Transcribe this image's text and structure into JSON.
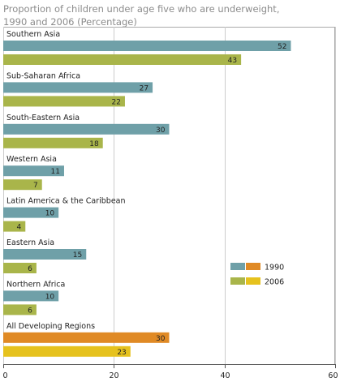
{
  "title_lines": [
    "Proportion of children under age five who are underweight,",
    "1990 and 2006 (Percentage)"
  ],
  "chart_data": {
    "type": "bar",
    "orientation": "horizontal",
    "categories": [
      "Southern Asia",
      "Sub-Saharan Africa",
      "South-Eastern Asia",
      "Western Asia",
      "Latin America & the Caribbean",
      "Eastern Asia",
      "Northern Africa",
      "All Developing Regions"
    ],
    "series": [
      {
        "name": "1990",
        "values": [
          52,
          27,
          30,
          11,
          10,
          15,
          10,
          30
        ]
      },
      {
        "name": "2006",
        "values": [
          43,
          22,
          18,
          7,
          4,
          6,
          6,
          23
        ]
      }
    ],
    "xlim": [
      0,
      60
    ],
    "xticks": [
      0,
      20,
      40,
      60
    ],
    "grid": true,
    "legend_position": "right",
    "colors": {
      "series_1990": "#6fa0a8",
      "series_2006": "#a9b54a",
      "highlight_1990": "#e08a25",
      "highlight_2006": "#e6c21e",
      "grid": "#cccccc",
      "frame": "#aaaaaa"
    },
    "highlight_category": "All Developing Regions"
  }
}
